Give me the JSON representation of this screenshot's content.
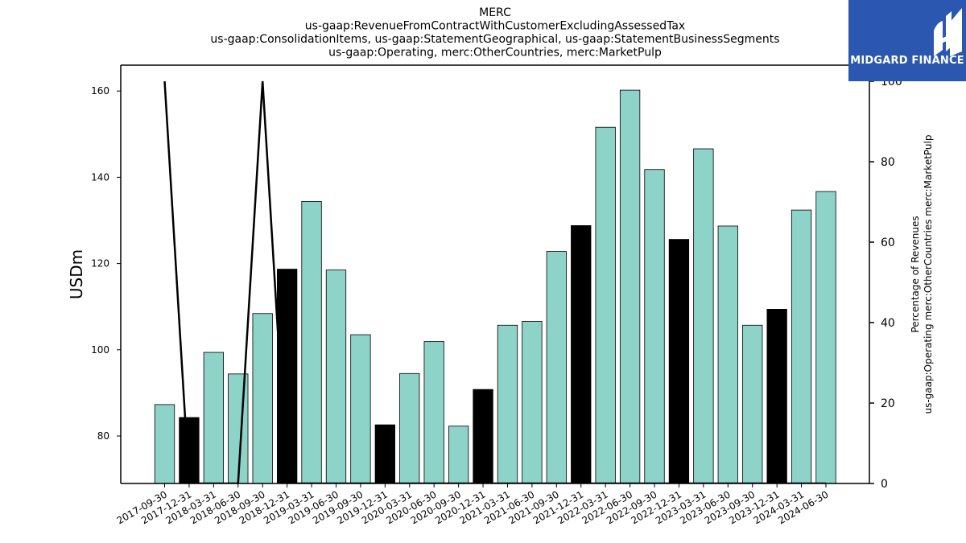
{
  "chart_data": {
    "type": "bar",
    "title_lines": [
      "MERC",
      "us-gaap:RevenueFromContractWithCustomerExcludingAssessedTax",
      "us-gaap:ConsolidationItems, us-gaap:StatementGeographical, us-gaap:StatementBusinessSegments",
      "us-gaap:Operating, merc:OtherCountries, merc:MarketPulp"
    ],
    "ylabel": "USDm",
    "y2label_lines": [
      "Percentage of Revenues",
      "us-gaap:Operating merc:OtherCountries merc:MarketPulp"
    ],
    "ylim": [
      69,
      166
    ],
    "y2lim": [
      0,
      104
    ],
    "yticks": [
      80,
      100,
      120,
      140,
      160
    ],
    "y2ticks": [
      0,
      20,
      40,
      60,
      80,
      100
    ],
    "categories": [
      "2017-09-30",
      "2017-12-31",
      "2018-03-31",
      "2018-06-30",
      "2018-09-30",
      "2018-12-31",
      "2019-03-31",
      "2019-06-30",
      "2019-09-30",
      "2019-12-31",
      "2020-03-31",
      "2020-06-30",
      "2020-09-30",
      "2020-12-31",
      "2021-03-31",
      "2021-06-30",
      "2021-09-30",
      "2021-12-31",
      "2022-03-31",
      "2022-06-30",
      "2022-09-30",
      "2022-12-31",
      "2023-03-31",
      "2023-06-30",
      "2023-09-30",
      "2023-12-31",
      "2024-03-31",
      "2024-06-30"
    ],
    "values": [
      87.3,
      84.3,
      99.4,
      94.4,
      108.4,
      118.7,
      134.4,
      118.5,
      103.5,
      82.6,
      94.5,
      101.9,
      82.3,
      90.8,
      105.7,
      106.6,
      122.8,
      128.8,
      151.6,
      160.2,
      141.8,
      125.6,
      146.6,
      128.7,
      105.7,
      109.4,
      132.4,
      136.7
    ],
    "bar_colors": [
      "#8dd3c7",
      "#000000",
      "#8dd3c7",
      "#8dd3c7",
      "#8dd3c7",
      "#000000",
      "#8dd3c7",
      "#8dd3c7",
      "#8dd3c7",
      "#000000",
      "#8dd3c7",
      "#8dd3c7",
      "#8dd3c7",
      "#000000",
      "#8dd3c7",
      "#8dd3c7",
      "#8dd3c7",
      "#000000",
      "#8dd3c7",
      "#8dd3c7",
      "#8dd3c7",
      "#000000",
      "#8dd3c7",
      "#8dd3c7",
      "#8dd3c7",
      "#000000",
      "#8dd3c7",
      "#8dd3c7"
    ],
    "line_series": {
      "axis": "right",
      "color": "#000000",
      "values": [
        100,
        0,
        0,
        0,
        100,
        0,
        0,
        0,
        0,
        0,
        0,
        0,
        0,
        0,
        0,
        0,
        0,
        0,
        0,
        0,
        0,
        0,
        0,
        0,
        0,
        0,
        0,
        0
      ]
    },
    "grid": false
  },
  "logo": {
    "text": "MIDGARD FINANCE",
    "bg_color": "#2b57b0"
  }
}
